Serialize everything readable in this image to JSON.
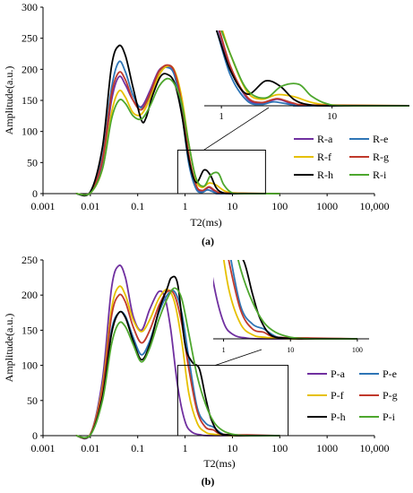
{
  "chart_data": [
    {
      "type": "line",
      "panel_label": "(a)",
      "xlabel": "T2(ms)",
      "ylabel": "Amplitude(a.u.)",
      "x_scale": "log",
      "xlim": [
        0.001,
        10000
      ],
      "ylim": [
        0,
        300
      ],
      "x_ticks": [
        "0.001",
        "0.01",
        "0.1",
        "1",
        "10",
        "100",
        "1000",
        "10,000"
      ],
      "y_ticks": [
        "0",
        "50",
        "100",
        "150",
        "200",
        "250",
        "300"
      ],
      "legend": "bottom-right",
      "inset": {
        "x_ticks": [
          "1",
          "10"
        ],
        "xlim": [
          0.7,
          50
        ]
      },
      "series": [
        {
          "name": "R-a",
          "color": "#7030a0",
          "points": [
            [
              0.005,
              0
            ],
            [
              0.01,
              2
            ],
            [
              0.018,
              50
            ],
            [
              0.028,
              150
            ],
            [
              0.04,
              188
            ],
            [
              0.055,
              175
            ],
            [
              0.08,
              150
            ],
            [
              0.12,
              140
            ],
            [
              0.18,
              165
            ],
            [
              0.28,
              198
            ],
            [
              0.42,
              205
            ],
            [
              0.6,
              195
            ],
            [
              0.85,
              140
            ],
            [
              1.2,
              60
            ],
            [
              1.7,
              12
            ],
            [
              2.3,
              3
            ],
            [
              3.2,
              10
            ],
            [
              4.5,
              2
            ],
            [
              6,
              0
            ],
            [
              100,
              0
            ]
          ]
        },
        {
          "name": "R-e",
          "color": "#2e75b6",
          "points": [
            [
              0.005,
              0
            ],
            [
              0.01,
              2
            ],
            [
              0.018,
              60
            ],
            [
              0.028,
              170
            ],
            [
              0.04,
              212
            ],
            [
              0.055,
              196
            ],
            [
              0.08,
              158
            ],
            [
              0.12,
              138
            ],
            [
              0.18,
              158
            ],
            [
              0.28,
              196
            ],
            [
              0.42,
              203
            ],
            [
              0.6,
              190
            ],
            [
              0.85,
              130
            ],
            [
              1.2,
              48
            ],
            [
              1.7,
              8
            ],
            [
              2.3,
              2
            ],
            [
              3,
              6
            ],
            [
              4.5,
              1
            ],
            [
              6,
              0
            ],
            [
              100,
              0
            ]
          ]
        },
        {
          "name": "R-f",
          "color": "#e6c000",
          "points": [
            [
              0.005,
              0
            ],
            [
              0.01,
              1
            ],
            [
              0.018,
              40
            ],
            [
              0.028,
              130
            ],
            [
              0.04,
              165
            ],
            [
              0.055,
              155
            ],
            [
              0.08,
              130
            ],
            [
              0.12,
              128
            ],
            [
              0.18,
              152
            ],
            [
              0.28,
              190
            ],
            [
              0.42,
              205
            ],
            [
              0.6,
              198
            ],
            [
              0.85,
              155
            ],
            [
              1.2,
              80
            ],
            [
              1.7,
              22
            ],
            [
              2.3,
              10
            ],
            [
              3.2,
              17
            ],
            [
              4.5,
              14
            ],
            [
              7,
              4
            ],
            [
              12,
              1
            ],
            [
              100,
              0
            ]
          ]
        },
        {
          "name": "R-g",
          "color": "#c0392b",
          "points": [
            [
              0.005,
              0
            ],
            [
              0.01,
              2
            ],
            [
              0.018,
              55
            ],
            [
              0.028,
              160
            ],
            [
              0.04,
              195
            ],
            [
              0.055,
              183
            ],
            [
              0.08,
              150
            ],
            [
              0.12,
              135
            ],
            [
              0.18,
              160
            ],
            [
              0.28,
              196
            ],
            [
              0.42,
              207
            ],
            [
              0.6,
              196
            ],
            [
              0.85,
              145
            ],
            [
              1.2,
              62
            ],
            [
              1.7,
              14
            ],
            [
              2.3,
              5
            ],
            [
              3.2,
              11
            ],
            [
              4.5,
              4
            ],
            [
              7,
              1
            ],
            [
              100,
              0
            ]
          ]
        },
        {
          "name": "R-h",
          "color": "#000000",
          "points": [
            [
              0.005,
              0
            ],
            [
              0.01,
              3
            ],
            [
              0.018,
              75
            ],
            [
              0.028,
              205
            ],
            [
              0.04,
              238
            ],
            [
              0.055,
              222
            ],
            [
              0.08,
              170
            ],
            [
              0.12,
              118
            ],
            [
              0.15,
              122
            ],
            [
              0.2,
              155
            ],
            [
              0.3,
              188
            ],
            [
              0.42,
              192
            ],
            [
              0.6,
              178
            ],
            [
              0.85,
              128
            ],
            [
              1.2,
              55
            ],
            [
              1.7,
              18
            ],
            [
              2.5,
              38
            ],
            [
              3.4,
              30
            ],
            [
              4.5,
              10
            ],
            [
              6,
              2
            ],
            [
              10,
              0
            ],
            [
              100,
              0
            ]
          ]
        },
        {
          "name": "R-i",
          "color": "#4ea72e",
          "points": [
            [
              0.005,
              0
            ],
            [
              0.01,
              1
            ],
            [
              0.018,
              40
            ],
            [
              0.028,
              120
            ],
            [
              0.04,
              150
            ],
            [
              0.055,
              145
            ],
            [
              0.08,
              125
            ],
            [
              0.12,
              120
            ],
            [
              0.18,
              140
            ],
            [
              0.28,
              172
            ],
            [
              0.42,
              185
            ],
            [
              0.6,
              176
            ],
            [
              0.85,
              145
            ],
            [
              1.2,
              80
            ],
            [
              1.7,
              25
            ],
            [
              2.5,
              12
            ],
            [
              3.5,
              30
            ],
            [
              5,
              33
            ],
            [
              6.5,
              15
            ],
            [
              9,
              3
            ],
            [
              14,
              0
            ],
            [
              100,
              0
            ]
          ]
        }
      ]
    },
    {
      "type": "line",
      "panel_label": "(b)",
      "xlabel": "T2(ms)",
      "ylabel": "Amplitude(a.u.)",
      "x_scale": "log",
      "xlim": [
        0.001,
        10000
      ],
      "ylim": [
        0,
        250
      ],
      "x_ticks": [
        "0.001",
        "0.01",
        "0.1",
        "1",
        "10",
        "100",
        "1000",
        "10,000"
      ],
      "y_ticks": [
        "0",
        "50",
        "100",
        "150",
        "200",
        "250"
      ],
      "legend": "bottom-right",
      "inset": {
        "x_ticks": [
          "1",
          "10",
          "100"
        ],
        "xlim": [
          0.7,
          150
        ]
      },
      "series": [
        {
          "name": "P-a",
          "color": "#7030a0",
          "points": [
            [
              0.005,
              0
            ],
            [
              0.01,
              2
            ],
            [
              0.018,
              80
            ],
            [
              0.028,
              210
            ],
            [
              0.04,
              242
            ],
            [
              0.055,
              225
            ],
            [
              0.08,
              170
            ],
            [
              0.12,
              150
            ],
            [
              0.18,
              180
            ],
            [
              0.28,
              205
            ],
            [
              0.38,
              195
            ],
            [
              0.5,
              150
            ],
            [
              0.7,
              70
            ],
            [
              1,
              20
            ],
            [
              1.4,
              5
            ],
            [
              2.2,
              1
            ],
            [
              4,
              0
            ],
            [
              100,
              0
            ]
          ]
        },
        {
          "name": "P-e",
          "color": "#2e75b6",
          "points": [
            [
              0.005,
              0
            ],
            [
              0.01,
              1
            ],
            [
              0.018,
              60
            ],
            [
              0.028,
              150
            ],
            [
              0.04,
              175
            ],
            [
              0.055,
              170
            ],
            [
              0.08,
              140
            ],
            [
              0.12,
              115
            ],
            [
              0.18,
              135
            ],
            [
              0.28,
              175
            ],
            [
              0.42,
              200
            ],
            [
              0.6,
              205
            ],
            [
              0.85,
              175
            ],
            [
              1.2,
              110
            ],
            [
              1.8,
              40
            ],
            [
              2.7,
              18
            ],
            [
              4,
              12
            ],
            [
              6,
              3
            ],
            [
              10,
              0
            ],
            [
              100,
              0
            ]
          ]
        },
        {
          "name": "P-f",
          "color": "#e6c000",
          "points": [
            [
              0.005,
              0
            ],
            [
              0.01,
              2
            ],
            [
              0.018,
              70
            ],
            [
              0.028,
              180
            ],
            [
              0.04,
              212
            ],
            [
              0.055,
              200
            ],
            [
              0.08,
              165
            ],
            [
              0.12,
              148
            ],
            [
              0.18,
              165
            ],
            [
              0.28,
              195
            ],
            [
              0.42,
              208
            ],
            [
              0.6,
              190
            ],
            [
              0.85,
              135
            ],
            [
              1.2,
              60
            ],
            [
              1.8,
              18
            ],
            [
              2.7,
              5
            ],
            [
              4,
              2
            ],
            [
              10,
              0
            ],
            [
              100,
              0
            ]
          ]
        },
        {
          "name": "P-g",
          "color": "#c0392b",
          "points": [
            [
              0.005,
              0
            ],
            [
              0.01,
              2
            ],
            [
              0.018,
              65
            ],
            [
              0.028,
              170
            ],
            [
              0.04,
              200
            ],
            [
              0.055,
              190
            ],
            [
              0.08,
              155
            ],
            [
              0.12,
              132
            ],
            [
              0.18,
              150
            ],
            [
              0.28,
              185
            ],
            [
              0.42,
              205
            ],
            [
              0.6,
              200
            ],
            [
              0.85,
              160
            ],
            [
              1.2,
              95
            ],
            [
              1.8,
              35
            ],
            [
              2.7,
              12
            ],
            [
              4,
              8
            ],
            [
              6,
              2
            ],
            [
              20,
              1
            ],
            [
              100,
              0
            ]
          ]
        },
        {
          "name": "P-h",
          "color": "#000000",
          "points": [
            [
              0.005,
              0
            ],
            [
              0.01,
              1
            ],
            [
              0.018,
              55
            ],
            [
              0.028,
              145
            ],
            [
              0.04,
              175
            ],
            [
              0.055,
              168
            ],
            [
              0.08,
              135
            ],
            [
              0.12,
              108
            ],
            [
              0.18,
              130
            ],
            [
              0.28,
              178
            ],
            [
              0.42,
              210
            ],
            [
              0.52,
              225
            ],
            [
              0.7,
              215
            ],
            [
              1,
              130
            ],
            [
              1.4,
              105
            ],
            [
              2,
              95
            ],
            [
              2.7,
              55
            ],
            [
              3.5,
              25
            ],
            [
              5,
              5
            ],
            [
              8,
              1
            ],
            [
              15,
              0
            ],
            [
              100,
              0
            ]
          ]
        },
        {
          "name": "P-i",
          "color": "#4ea72e",
          "points": [
            [
              0.005,
              0
            ],
            [
              0.01,
              1
            ],
            [
              0.018,
              50
            ],
            [
              0.028,
              130
            ],
            [
              0.04,
              160
            ],
            [
              0.055,
              155
            ],
            [
              0.08,
              130
            ],
            [
              0.12,
              105
            ],
            [
              0.18,
              125
            ],
            [
              0.28,
              165
            ],
            [
              0.42,
              195
            ],
            [
              0.6,
              210
            ],
            [
              0.85,
              195
            ],
            [
              1.2,
              145
            ],
            [
              1.8,
              85
            ],
            [
              2.7,
              45
            ],
            [
              4,
              20
            ],
            [
              6,
              8
            ],
            [
              10,
              2
            ],
            [
              20,
              0
            ],
            [
              100,
              0
            ]
          ]
        }
      ]
    }
  ]
}
